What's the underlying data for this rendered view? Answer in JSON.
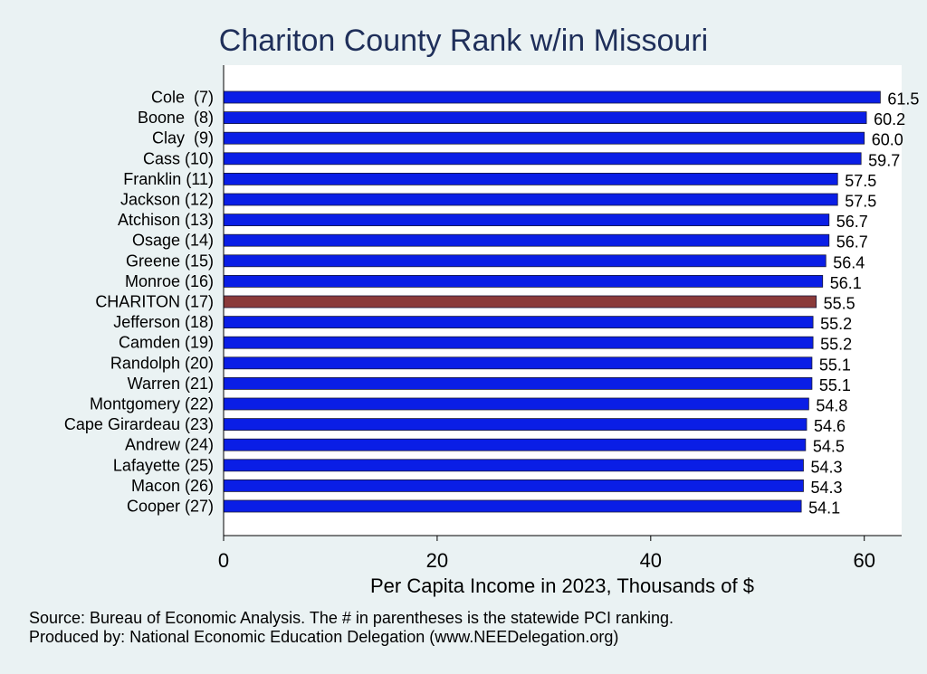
{
  "chart_data": {
    "type": "bar",
    "orientation": "horizontal",
    "title": "Chariton County Rank w/in Missouri",
    "xlabel": "Per Capita Income in 2023, Thousands of $",
    "xlim": [
      0,
      63.5
    ],
    "xticks": [
      0,
      20,
      40,
      60
    ],
    "categories": [
      "Cole  (7)",
      "Boone  (8)",
      "Clay  (9)",
      "Cass (10)",
      "Franklin (11)",
      "Jackson (12)",
      "Atchison (13)",
      "Osage (14)",
      "Greene (15)",
      "Monroe (16)",
      "CHARITON (17)",
      "Jefferson (18)",
      "Camden (19)",
      "Randolph (20)",
      "Warren (21)",
      "Montgomery (22)",
      "Cape Girardeau (23)",
      "Andrew (24)",
      "Lafayette (25)",
      "Macon (26)",
      "Cooper (27)"
    ],
    "values": [
      61.5,
      60.2,
      60.0,
      59.7,
      57.5,
      57.5,
      56.7,
      56.7,
      56.4,
      56.1,
      55.5,
      55.2,
      55.2,
      55.1,
      55.1,
      54.8,
      54.6,
      54.5,
      54.3,
      54.3,
      54.1
    ],
    "value_labels": [
      "61.5",
      "60.2",
      "60.0",
      "59.7",
      "57.5",
      "57.5",
      "56.7",
      "56.7",
      "56.4",
      "56.1",
      "55.5",
      "55.2",
      "55.2",
      "55.1",
      "55.1",
      "54.8",
      "54.6",
      "54.5",
      "54.3",
      "54.3",
      "54.1"
    ],
    "highlight_index": 10,
    "colors": {
      "bar": "#0a1ee6",
      "highlight": "#8b3a3a",
      "plot_bg": "#ffffff",
      "page_bg": "#eaf2f3"
    },
    "grid": false,
    "legend": "none"
  },
  "footer": {
    "source": "Source: Bureau of Economic Analysis. The # in parentheses is the statewide PCI ranking.",
    "produced": "Produced by: National Economic Education Delegation (www.NEEDelegation.org)"
  }
}
